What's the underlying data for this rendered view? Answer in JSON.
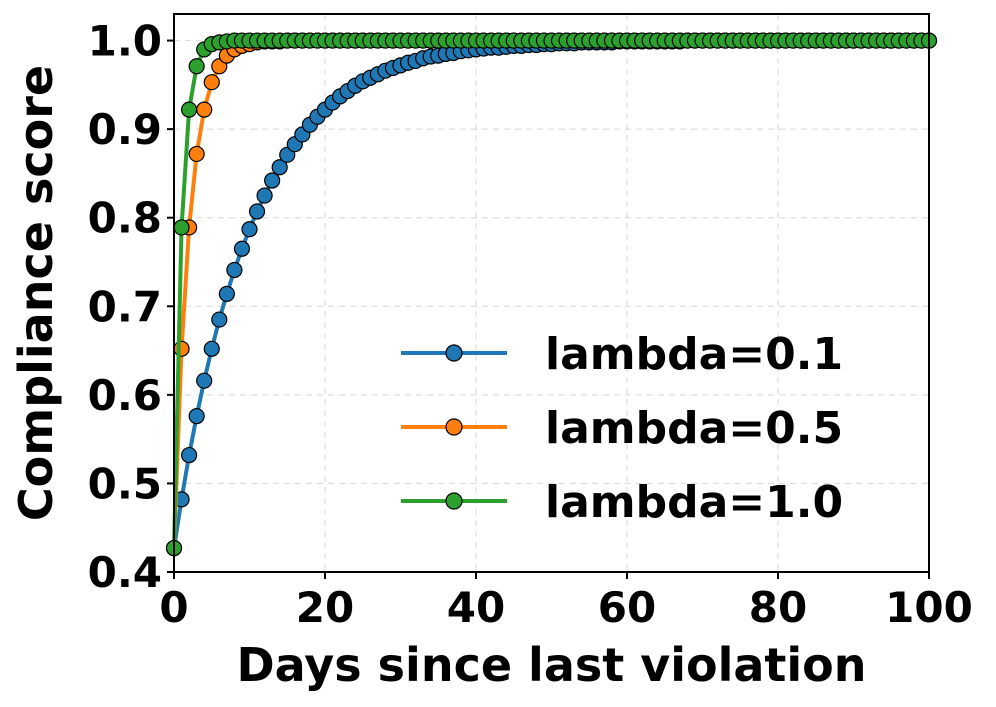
{
  "chart_data": {
    "type": "line",
    "title": "",
    "xlabel": "Days since last violation",
    "ylabel": "Compliance score",
    "xlim": [
      0,
      100
    ],
    "ylim": [
      0.4,
      1.03
    ],
    "xticks": [
      0,
      20,
      40,
      60,
      80,
      100
    ],
    "xtick_labels": [
      "0",
      "20",
      "40",
      "60",
      "80",
      "100"
    ],
    "yticks": [
      0.4,
      0.5,
      0.6,
      0.7,
      0.8,
      0.9,
      1.0
    ],
    "ytick_labels": [
      "0.4",
      "0.5",
      "0.6",
      "0.7",
      "0.8",
      "0.9",
      "1.0"
    ],
    "grid": true,
    "legend_position": "lower-right",
    "x": [
      0,
      1,
      2,
      3,
      4,
      5,
      6,
      7,
      8,
      9,
      10,
      11,
      12,
      13,
      14,
      15,
      16,
      17,
      18,
      19,
      20,
      21,
      22,
      23,
      24,
      25,
      26,
      27,
      28,
      29,
      30,
      31,
      32,
      33,
      34,
      35,
      36,
      37,
      38,
      39,
      40,
      41,
      42,
      43,
      44,
      45,
      46,
      47,
      48,
      49,
      50,
      51,
      52,
      53,
      54,
      55,
      56,
      57,
      58,
      59,
      60,
      61,
      62,
      63,
      64,
      65,
      66,
      67,
      68,
      69,
      70,
      71,
      72,
      73,
      74,
      75,
      76,
      77,
      78,
      79,
      80,
      81,
      82,
      83,
      84,
      85,
      86,
      87,
      88,
      89,
      90,
      91,
      92,
      93,
      94,
      95,
      96,
      97,
      98,
      99,
      100
    ],
    "series": [
      {
        "name": "lambda=0.1",
        "color": "#1f77b4",
        "values": [
          0.427,
          0.482,
          0.532,
          0.576,
          0.616,
          0.652,
          0.685,
          0.714,
          0.741,
          0.765,
          0.787,
          0.807,
          0.825,
          0.842,
          0.857,
          0.871,
          0.883,
          0.894,
          0.905,
          0.914,
          0.922,
          0.93,
          0.937,
          0.943,
          0.949,
          0.954,
          0.958,
          0.962,
          0.966,
          0.969,
          0.972,
          0.975,
          0.977,
          0.98,
          0.982,
          0.983,
          0.985,
          0.986,
          0.988,
          0.989,
          0.99,
          0.991,
          0.992,
          0.992,
          0.993,
          0.994,
          0.994,
          0.995,
          0.995,
          0.996,
          0.996,
          0.997,
          0.997,
          0.997,
          0.998,
          0.998,
          0.998,
          0.998,
          0.998,
          0.999,
          0.999,
          0.999,
          0.999,
          0.999,
          0.999,
          0.999,
          0.999,
          0.999,
          1.0,
          1.0,
          1.0,
          1.0,
          1.0,
          1.0,
          1.0,
          1.0,
          1.0,
          1.0,
          1.0,
          1.0,
          1.0,
          1.0,
          1.0,
          1.0,
          1.0,
          1.0,
          1.0,
          1.0,
          1.0,
          1.0,
          1.0,
          1.0,
          1.0,
          1.0,
          1.0,
          1.0,
          1.0,
          1.0,
          1.0,
          1.0,
          1.0
        ]
      },
      {
        "name": "lambda=0.5",
        "color": "#ff7f0e",
        "values": [
          0.427,
          0.652,
          0.789,
          0.872,
          0.922,
          0.953,
          0.971,
          0.983,
          0.99,
          0.994,
          0.996,
          0.998,
          0.999,
          0.999,
          0.999,
          1.0,
          1.0,
          1.0,
          1.0,
          1.0,
          1.0,
          1.0,
          1.0,
          1.0,
          1.0,
          1.0,
          1.0,
          1.0,
          1.0,
          1.0,
          1.0,
          1.0,
          1.0,
          1.0,
          1.0,
          1.0,
          1.0,
          1.0,
          1.0,
          1.0,
          1.0,
          1.0,
          1.0,
          1.0,
          1.0,
          1.0,
          1.0,
          1.0,
          1.0,
          1.0,
          1.0,
          1.0,
          1.0,
          1.0,
          1.0,
          1.0,
          1.0,
          1.0,
          1.0,
          1.0,
          1.0,
          1.0,
          1.0,
          1.0,
          1.0,
          1.0,
          1.0,
          1.0,
          1.0,
          1.0,
          1.0,
          1.0,
          1.0,
          1.0,
          1.0,
          1.0,
          1.0,
          1.0,
          1.0,
          1.0,
          1.0,
          1.0,
          1.0,
          1.0,
          1.0,
          1.0,
          1.0,
          1.0,
          1.0,
          1.0,
          1.0,
          1.0,
          1.0,
          1.0,
          1.0,
          1.0,
          1.0,
          1.0,
          1.0,
          1.0,
          1.0
        ]
      },
      {
        "name": "lambda=1.0",
        "color": "#2ca02c",
        "values": [
          0.427,
          0.789,
          0.922,
          0.971,
          0.99,
          0.996,
          0.998,
          0.999,
          1.0,
          1.0,
          1.0,
          1.0,
          1.0,
          1.0,
          1.0,
          1.0,
          1.0,
          1.0,
          1.0,
          1.0,
          1.0,
          1.0,
          1.0,
          1.0,
          1.0,
          1.0,
          1.0,
          1.0,
          1.0,
          1.0,
          1.0,
          1.0,
          1.0,
          1.0,
          1.0,
          1.0,
          1.0,
          1.0,
          1.0,
          1.0,
          1.0,
          1.0,
          1.0,
          1.0,
          1.0,
          1.0,
          1.0,
          1.0,
          1.0,
          1.0,
          1.0,
          1.0,
          1.0,
          1.0,
          1.0,
          1.0,
          1.0,
          1.0,
          1.0,
          1.0,
          1.0,
          1.0,
          1.0,
          1.0,
          1.0,
          1.0,
          1.0,
          1.0,
          1.0,
          1.0,
          1.0,
          1.0,
          1.0,
          1.0,
          1.0,
          1.0,
          1.0,
          1.0,
          1.0,
          1.0,
          1.0,
          1.0,
          1.0,
          1.0,
          1.0,
          1.0,
          1.0,
          1.0,
          1.0,
          1.0,
          1.0,
          1.0,
          1.0,
          1.0,
          1.0,
          1.0,
          1.0,
          1.0,
          1.0,
          1.0,
          1.0
        ]
      }
    ]
  }
}
